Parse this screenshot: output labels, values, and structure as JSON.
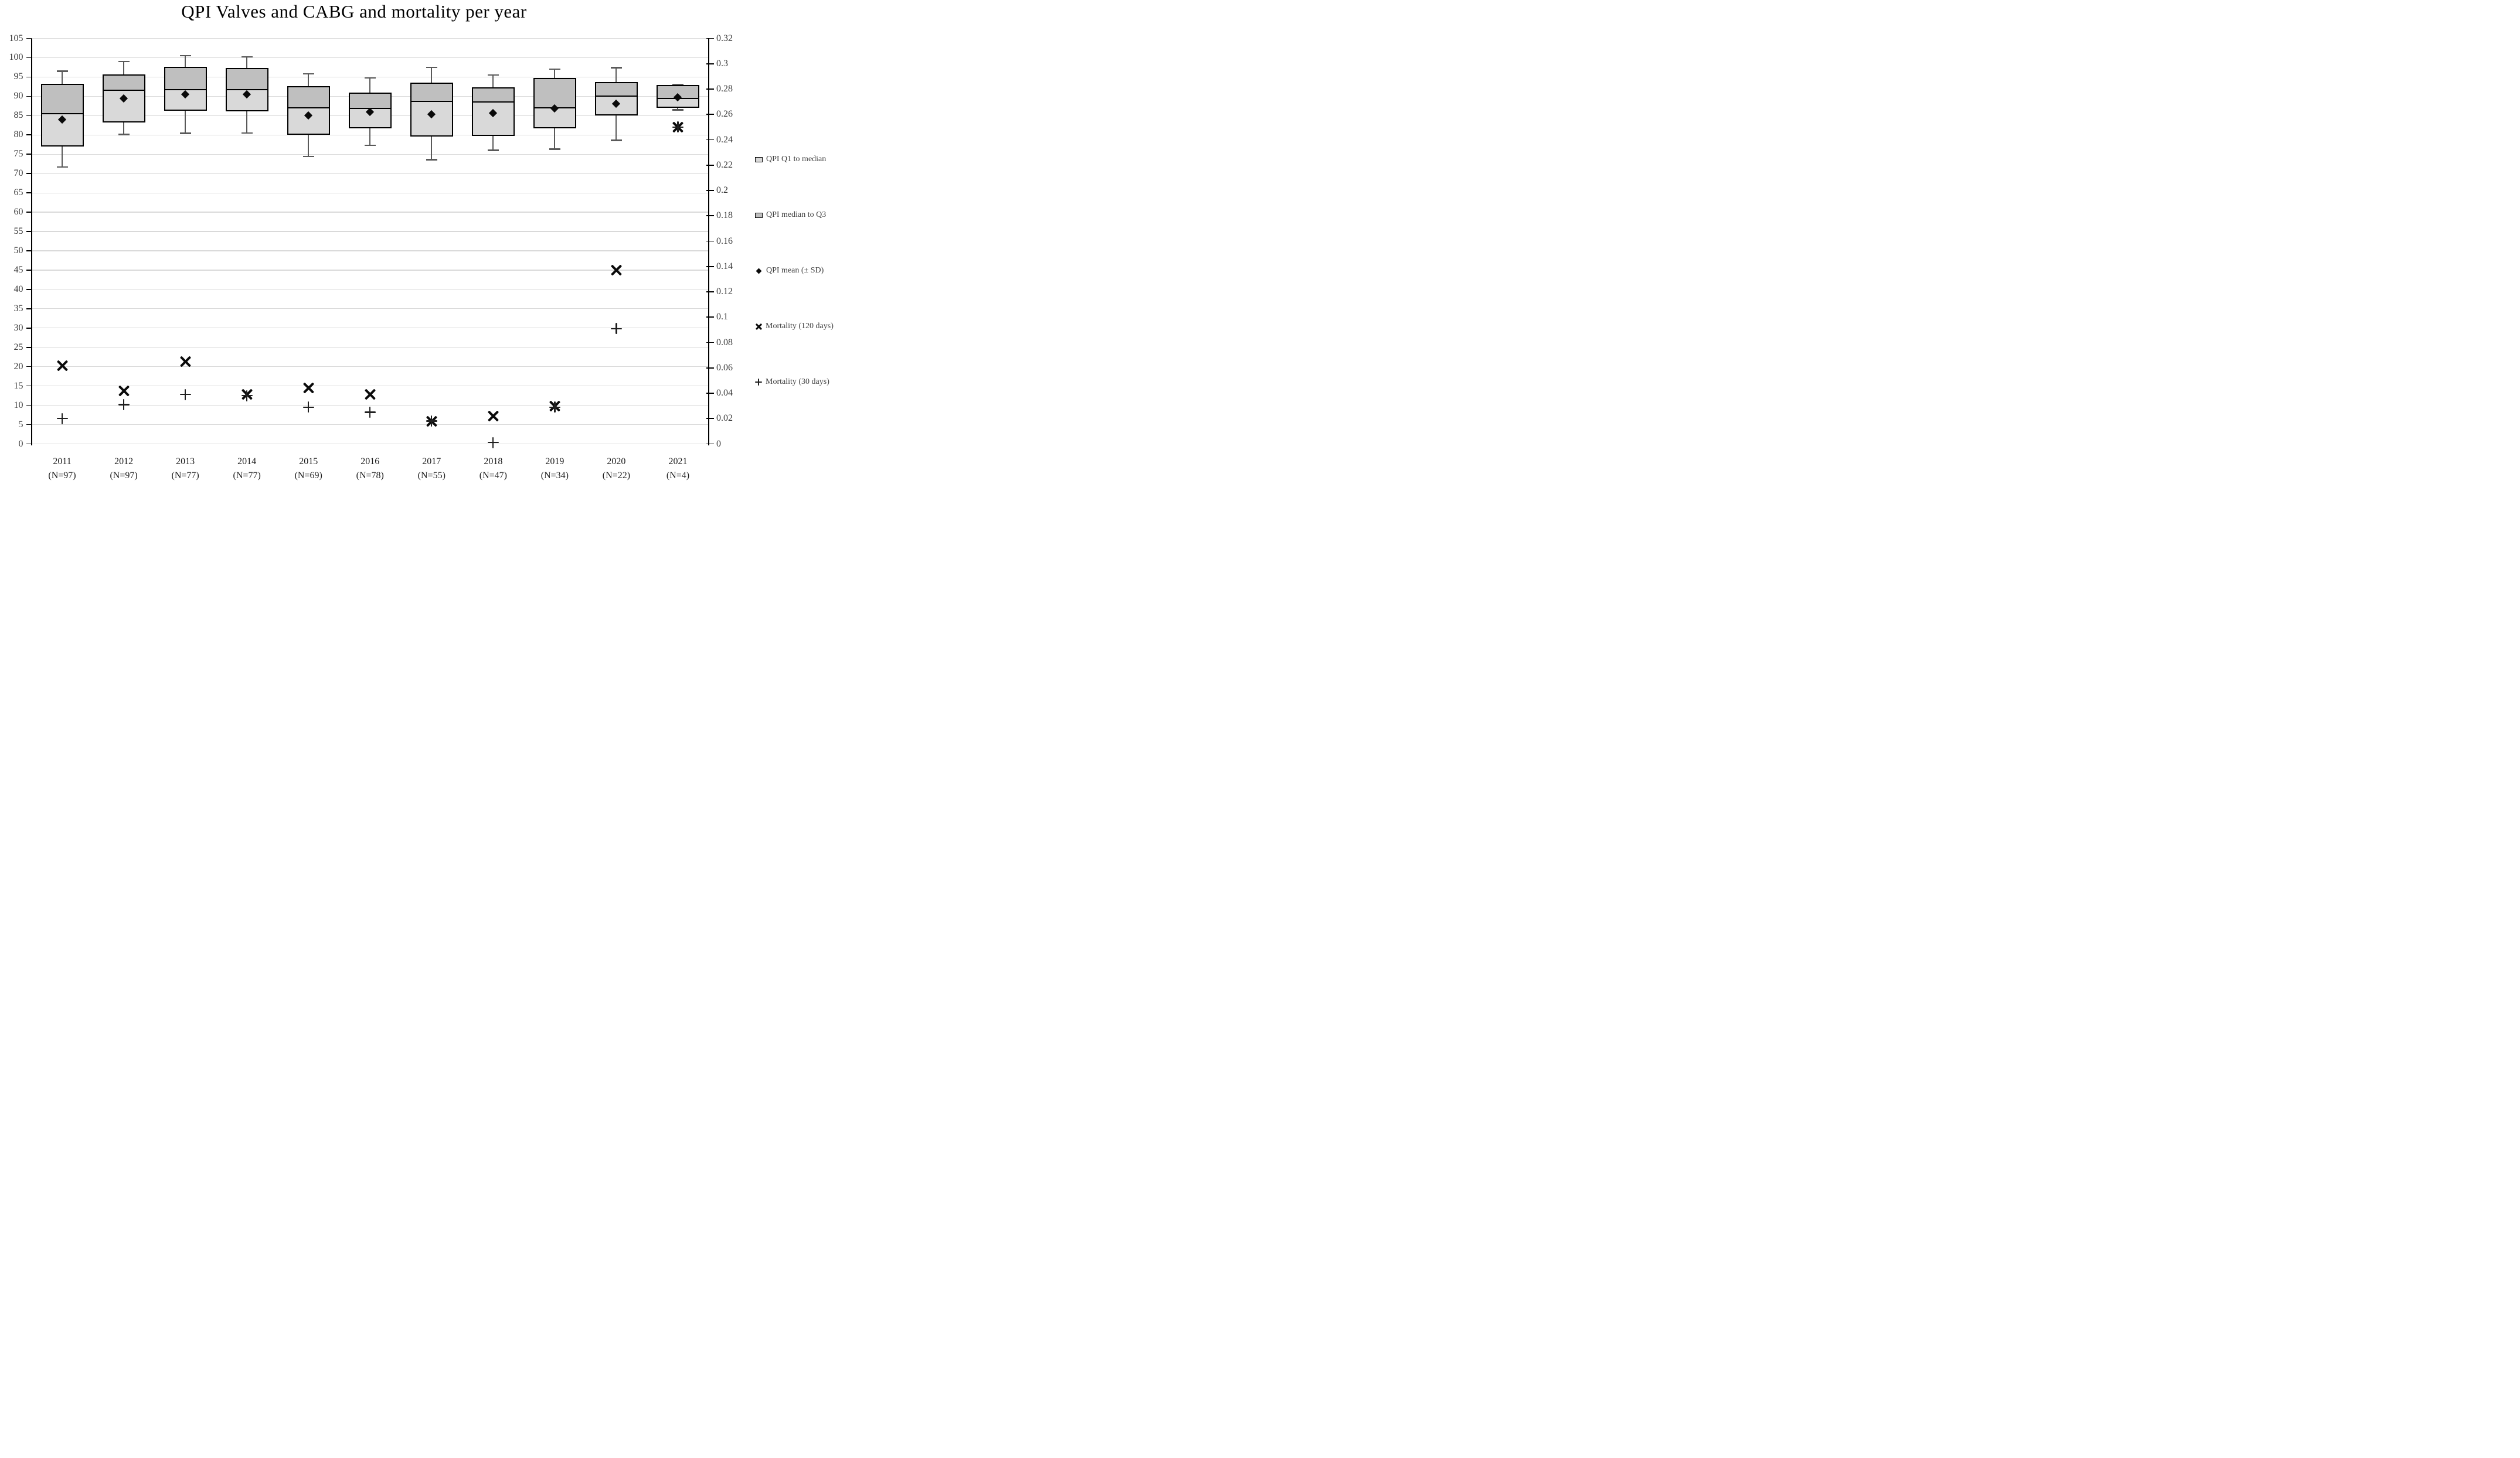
{
  "title": "QPI Valves and CABG and mortality per year",
  "colors": {
    "box_light": "#d9d9d9",
    "box_dark": "#bfbfbf",
    "box_border": "#000000",
    "whisker": "#595959",
    "gridline": "#d9d9d9",
    "axis_line": "#000000",
    "marker": "#0a0a0a",
    "tick_text": "#3a3a3a",
    "title_text": "#000000"
  },
  "legend": {
    "position": "right",
    "items": [
      {
        "label": "QPI Q1 to median",
        "marker": "box-light"
      },
      {
        "label": "QPI median to Q3",
        "marker": "box-dark"
      },
      {
        "label": "QPI mean (± SD)",
        "marker": "diamond"
      },
      {
        "label": "Mortality (120 days)",
        "marker": "x"
      },
      {
        "label": "Mortality (30 days)",
        "marker": "plus"
      }
    ]
  },
  "chart_data": {
    "type": "box-whisker with scatter overlay (dual y-axis)",
    "title": "QPI Valves and CABG and mortality per year",
    "xlabel": "",
    "ylabel_left": "",
    "ylabel_right": "",
    "grid": "horizontal, follows left axis (step 5)",
    "categories": [
      "2011",
      "2012",
      "2013",
      "2014",
      "2015",
      "2016",
      "2017",
      "2018",
      "2019",
      "2020",
      "2021"
    ],
    "n_labels": [
      "(N=97)",
      "(N=97)",
      "(N=77)",
      "(N=77)",
      "(N=69)",
      "(N=78)",
      "(N=55)",
      "(N=47)",
      "(N=34)",
      "(N=22)",
      "(N=4)"
    ],
    "left_axis": {
      "min": 0,
      "max": 105,
      "step": 5,
      "tick_labels": [
        "105",
        "100",
        "95",
        "90",
        "85",
        "80",
        "75",
        "70",
        "65",
        "60",
        "55",
        "50",
        "45",
        "40",
        "35",
        "30",
        "25",
        "20",
        "15",
        "10",
        "5",
        "0"
      ]
    },
    "right_axis": {
      "min": 0,
      "max": 0.32,
      "step": 0.02,
      "tick_labels": [
        "0.32",
        "0.3",
        "0.28",
        "0.26",
        "0.24",
        "0.22",
        "0.2",
        "0.18",
        "0.16",
        "0.14",
        "0.12",
        "0.1",
        "0.08",
        "0.06",
        "0.04",
        "0.02",
        "0"
      ]
    },
    "series": [
      {
        "name": "QPI boxes (left axis)",
        "q1": [
          77.0,
          83.2,
          86.3,
          86.1,
          80.1,
          81.7,
          79.6,
          79.8,
          81.7,
          85.1,
          87.0
        ],
        "median": [
          85.4,
          91.5,
          91.6,
          91.7,
          86.9,
          86.8,
          88.6,
          88.4,
          86.9,
          89.9,
          89.4
        ],
        "q3": [
          93.2,
          95.7,
          97.7,
          97.4,
          92.7,
          90.9,
          93.6,
          92.4,
          94.7,
          93.7,
          92.9
        ],
        "mean": [
          84.0,
          89.5,
          90.5,
          90.5,
          85.1,
          85.9,
          85.4,
          85.6,
          86.8,
          88.1,
          89.8
        ],
        "sd_high": [
          96.5,
          99.0,
          100.5,
          100.2,
          95.8,
          94.8,
          97.5,
          95.5,
          97.0,
          97.4,
          93.1
        ],
        "sd_low": [
          71.7,
          80.1,
          80.4,
          80.5,
          74.4,
          77.3,
          73.6,
          76.0,
          76.3,
          78.6,
          86.5
        ]
      },
      {
        "name": "Mortality (120 days)",
        "axis": "right",
        "values": [
          0.062,
          0.042,
          0.065,
          0.039,
          0.044,
          0.039,
          0.018,
          0.022,
          0.03,
          0.137,
          0.25
        ]
      },
      {
        "name": "Mortality (30 days)",
        "axis": "right",
        "values": [
          0.02,
          0.031,
          0.039,
          0.038,
          0.029,
          0.025,
          0.018,
          0.001,
          0.029,
          0.091,
          0.25
        ]
      }
    ]
  }
}
